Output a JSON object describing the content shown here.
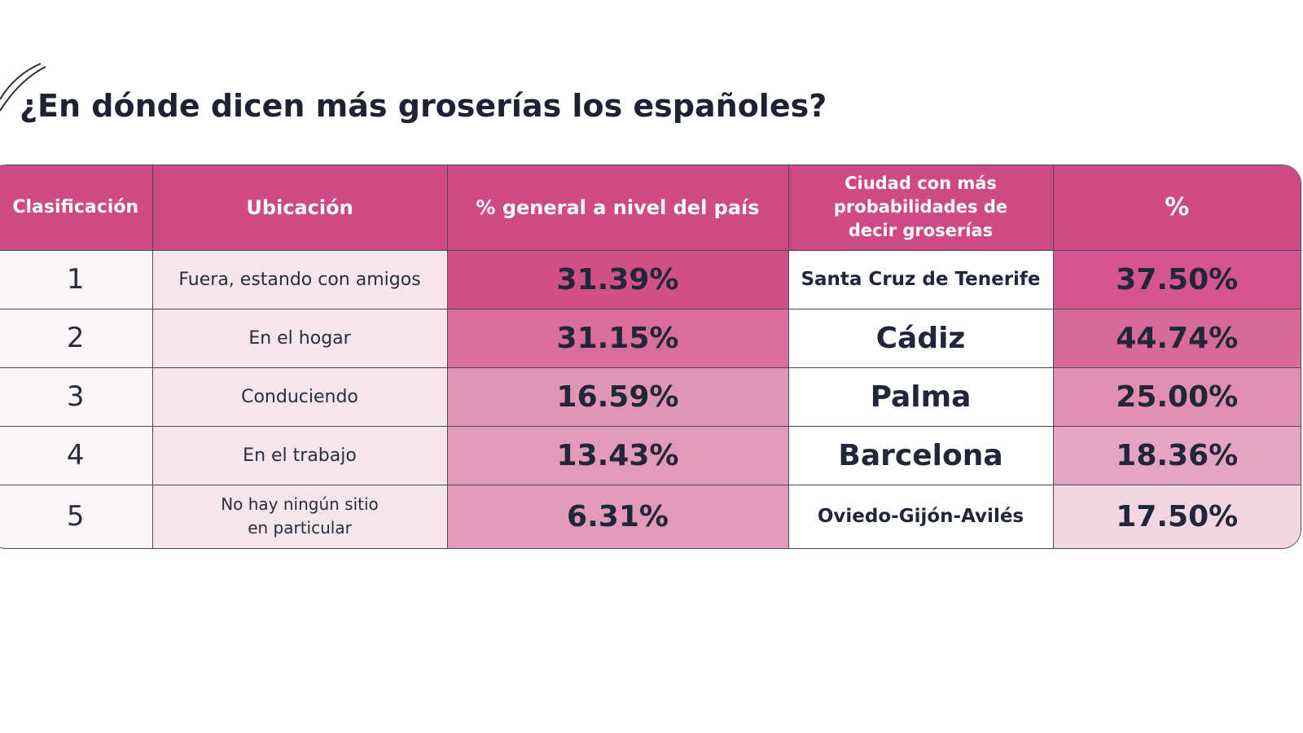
{
  "colors": {
    "header_bg": "#cf4a85",
    "header_text": "#ffffff",
    "text_dark": "#22263a",
    "rank_bg": "#faf6f7",
    "location_bg": "#f6e6ec",
    "city_bg": "#ffffff"
  },
  "chart_data": {
    "type": "table",
    "title": "¿En dónde dicen más groserías los españoles?",
    "columns": [
      "Clasificación",
      "Ubicación",
      "% general a nivel del país",
      "Ciudad con más probabilidades de decir groserías",
      "%"
    ],
    "rows": [
      {
        "rank": "1",
        "location": "Fuera, estando con amigos",
        "general_pct": "31.39%",
        "city": "Santa Cruz de Tenerife",
        "city_pct": "37.50%",
        "general_bg": "#d2508a",
        "city_pct_bg": "#d55590"
      },
      {
        "rank": "2",
        "location": "En el hogar",
        "general_pct": "31.15%",
        "city": "Cádiz",
        "city_pct": "44.74%",
        "general_bg": "#d96d9d",
        "city_pct_bg": "#d8699b"
      },
      {
        "rank": "3",
        "location": "Conduciendo",
        "general_pct": "16.59%",
        "city": "Palma",
        "city_pct": "25.00%",
        "general_bg": "#e195b6",
        "city_pct_bg": "#e08eb2"
      },
      {
        "rank": "4",
        "location": "En el trabajo",
        "general_pct": "13.43%",
        "city": "Barcelona",
        "city_pct": "18.36%",
        "general_bg": "#e39aba",
        "city_pct_bg": "#e5a4c1"
      },
      {
        "rank": "5",
        "location": "No hay ningún sitio en particular",
        "location_line1": "No hay ningún sitio",
        "location_line2": "en particular",
        "general_pct": "6.31%",
        "city": "Oviedo-Gijón-Avilés",
        "city_pct": "17.50%",
        "general_bg": "#e39aba",
        "city_pct_bg": "#f2d6e2"
      }
    ]
  }
}
